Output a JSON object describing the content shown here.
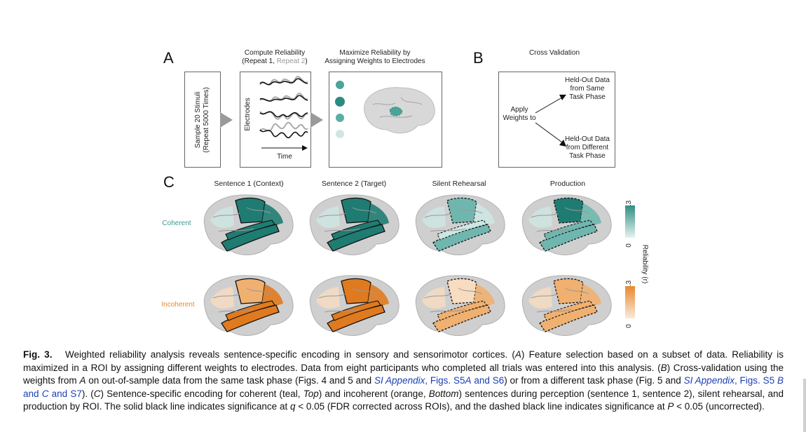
{
  "panelA": {
    "letter": "A",
    "box1_line1": "Sample 20 Stimuli",
    "box1_line2": "(Repeat 5000 Times)",
    "compute_title_line1": "Compute Reliability",
    "compute_title_line2a": "(Repeat 1, ",
    "compute_title_line2b": "Repeat 2",
    "compute_title_line2c": ")",
    "electrodes_label": "Electrodes",
    "time_label": "Time",
    "maximize_line1": "Maximize Reliability by",
    "maximize_line2": "Assigning Weights to Electrodes"
  },
  "panelB": {
    "letter": "B",
    "title": "Cross Validation",
    "apply_line1": "Apply",
    "apply_line2": "Weights to",
    "same_line1": "Held-Out Data",
    "same_line2": "from Same",
    "same_line3": "Task Phase",
    "diff_line1": "Held-Out Data",
    "diff_line2": "from Different",
    "diff_line3": "Task Phase"
  },
  "panelC": {
    "letter": "C",
    "columns": [
      "Sentence 1 (Context)",
      "Sentence 2 (Target)",
      "Silent Rehearsal",
      "Production"
    ],
    "row_coherent": "Coherent",
    "row_incoherent": "Incoherent",
    "colorbar_label": "Reliability (r)",
    "teal_max": ".3",
    "teal_min": "0",
    "orange_max": ".3",
    "orange_min": "0",
    "colors": {
      "teal": "#2f8f84",
      "orange": "#e8892e"
    }
  },
  "caption": {
    "fig": "Fig. 3.",
    "p1": "Weighted reliability analysis reveals sentence-specific encoding in sensory and sensorimotor cortices. (",
    "p1a": "A",
    "p2": ") Feature selection based on a subset of data. Reliability is maximized in a ROI by assigning different weights to electrodes. Data from eight participants who completed all trials was entered into this analysis. (",
    "p2b": "B",
    "p3": ") Cross-validation using the weights from ",
    "p3a": "A",
    "p4": " on out-of-sample data from the same task phase (Figs. 4 and 5 and ",
    "link1a": "SI Appendix",
    "link1b": ", Figs. S5",
    "link1c": "A",
    "link1d": " and S6",
    "p5": ") or from a different task phase (Fig. 5 and ",
    "link2a": "SI Appendix",
    "link2b": ", Figs. S5 ",
    "link2c": "B",
    "link2d": " and ",
    "link2e": "C",
    "link2f": " and S7",
    "p6": "). (",
    "p6c": "C",
    "p7": ") Sentence-specific encoding for coherent (teal, ",
    "p7top": "Top",
    "p8": ") and incoherent (orange, ",
    "p8bottom": "Bottom",
    "p9": ") sentences during perception (sentence 1, sentence 2), silent rehearsal, and production by ROI. The solid black line indicates significance at ",
    "q": "q",
    "p10": " < 0.05 (FDR corrected across ROIs), and the dashed black line indicates significance at ",
    "P": "P",
    "p11": " < 0.05 (uncorrected)."
  }
}
